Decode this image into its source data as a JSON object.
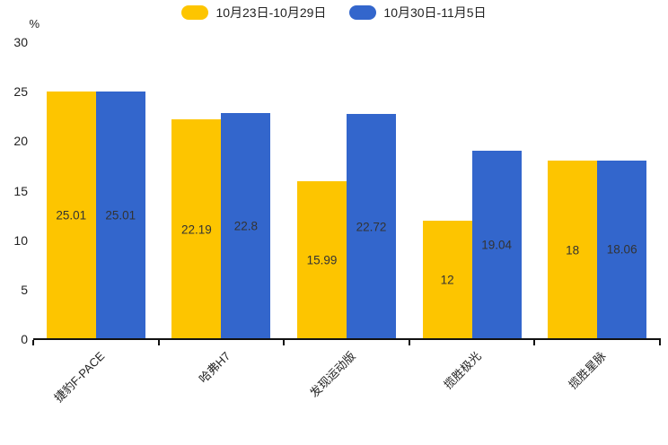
{
  "legend": {
    "items": [
      {
        "label": "10月23日-10月29日",
        "color": "#FDC500"
      },
      {
        "label": "10月30日-11月5日",
        "color": "#3366CC"
      }
    ]
  },
  "chart_data": {
    "type": "bar",
    "title": "",
    "categories": [
      "捷豹F-PACE",
      "哈弗H7",
      "发现运动版",
      "揽胜极光",
      "揽胜星脉"
    ],
    "series": [
      {
        "name": "10月23日-10月29日",
        "color": "#FDC500",
        "values": [
          25.01,
          22.19,
          15.99,
          12,
          18
        ]
      },
      {
        "name": "10月30日-11月5日",
        "color": "#3366CC",
        "values": [
          25.01,
          22.8,
          22.72,
          19.04,
          18.06
        ]
      }
    ],
    "xlabel": "",
    "ylabel": "%",
    "ylim": [
      0,
      30
    ],
    "yticks": [
      0,
      5,
      10,
      15,
      20,
      25,
      30
    ],
    "grid": false,
    "legend_position": "top",
    "value_labels": "inside-center",
    "axis_color": "#111111",
    "label_color": "#333333"
  }
}
